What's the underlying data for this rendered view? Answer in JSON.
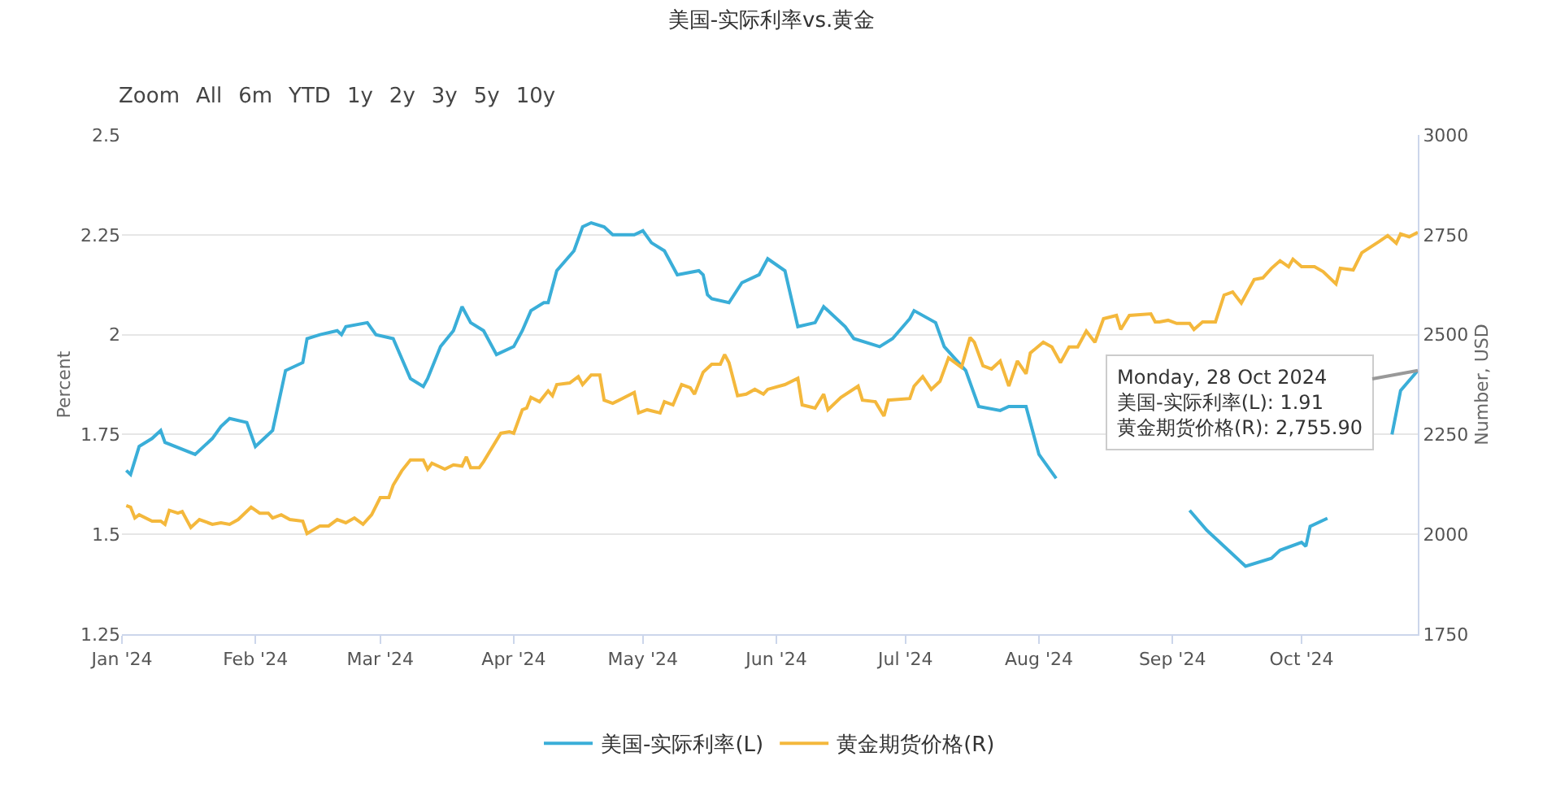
{
  "chart_data": {
    "type": "line",
    "title": "美国-实际利率vs.黄金",
    "ylabel": "Percent",
    "y2label": "Number, USD",
    "annotations": [
      "Zoom",
      "All",
      "6m",
      "YTD",
      "1y",
      "2y",
      "3y",
      "5y",
      "10y",
      {
        "text": "Monday, 28 Oct 2024\n美国-实际利率(L): 1.91\n黄金期货价格(R): 2,755.90",
        "x": "2024-10-28",
        "y": 1.91
      }
    ],
    "xlim": [
      "2024-01-01",
      "2024-10-28"
    ],
    "xticks": [
      {
        "value": "2024-01-01",
        "label": "Jan '24"
      },
      {
        "value": "2024-02-01",
        "label": "Feb '24"
      },
      {
        "value": "2024-03-01",
        "label": "Mar '24"
      },
      {
        "value": "2024-04-01",
        "label": "Apr '24"
      },
      {
        "value": "2024-05-01",
        "label": "May '24"
      },
      {
        "value": "2024-06-01",
        "label": "Jun '24"
      },
      {
        "value": "2024-07-01",
        "label": "Jul '24"
      },
      {
        "value": "2024-08-01",
        "label": "Aug '24"
      },
      {
        "value": "2024-09-01",
        "label": "Sep '24"
      },
      {
        "value": "2024-10-01",
        "label": "Oct '24"
      }
    ],
    "ylim": [
      1.25,
      2.5
    ],
    "yticks": [
      1.25,
      1.5,
      1.75,
      2,
      2.25,
      2.5
    ],
    "y2lim": [
      1750,
      3000
    ],
    "y2ticks": [
      1750,
      2000,
      2250,
      2500,
      2750,
      3000
    ],
    "grid": "y",
    "legend": "bottom",
    "series": [
      {
        "name": "美国-实际利率(L)",
        "color": "#3aaed8",
        "x": [
          "2024-01-02",
          "2024-01-03",
          "2024-01-05",
          "2024-01-08",
          "2024-01-10",
          "2024-01-11",
          "2024-01-18",
          "2024-01-22",
          "2024-01-24",
          "2024-01-26",
          "2024-01-30",
          "2024-02-01",
          "2024-02-02",
          "2024-02-05",
          "2024-02-08",
          "2024-02-12",
          "2024-02-13",
          "2024-02-16",
          "2024-02-20",
          "2024-02-21",
          "2024-02-22",
          "2024-02-27",
          "2024-02-29",
          "2024-03-04",
          "2024-03-08",
          "2024-03-11",
          "2024-03-12",
          "2024-03-15",
          "2024-03-18",
          "2024-03-20",
          "2024-03-22",
          "2024-03-25",
          "2024-03-28",
          "2024-04-01",
          "2024-04-03",
          "2024-04-05",
          "2024-04-08",
          "2024-04-09",
          "2024-04-11",
          "2024-04-15",
          "2024-04-17",
          "2024-04-19",
          "2024-04-22",
          "2024-04-24",
          "2024-04-29",
          "2024-05-01",
          "2024-05-03",
          "2024-05-06",
          "2024-05-09",
          "2024-05-14",
          "2024-05-15",
          "2024-05-16",
          "2024-05-17",
          "2024-05-21",
          "2024-05-24",
          "2024-05-28",
          "2024-05-30",
          "2024-06-03",
          "2024-06-06",
          "2024-06-10",
          "2024-06-12",
          "2024-06-14",
          "2024-06-17",
          "2024-06-19",
          "2024-06-25",
          "2024-06-28",
          "2024-07-02",
          "2024-07-03",
          "2024-07-08",
          "2024-07-10",
          "2024-07-15",
          "2024-07-18",
          "2024-07-23",
          "2024-07-25",
          "2024-07-29",
          "2024-08-01",
          "2024-08-05",
          "2024-08-15",
          "2024-09-05",
          "2024-09-09",
          "2024-09-18",
          "2024-09-24",
          "2024-09-26",
          "2024-10-01",
          "2024-10-02",
          "2024-10-03",
          "2024-10-07",
          "2024-10-14",
          "2024-10-22",
          "2024-10-24",
          "2024-10-28"
        ],
        "values": [
          1.66,
          1.65,
          1.72,
          1.74,
          1.76,
          1.73,
          1.7,
          1.74,
          1.77,
          1.79,
          1.78,
          1.72,
          1.73,
          1.76,
          1.91,
          1.93,
          1.99,
          2.0,
          2.01,
          2.0,
          2.02,
          2.03,
          2.0,
          1.99,
          1.89,
          1.87,
          1.89,
          1.97,
          2.01,
          2.07,
          2.03,
          2.01,
          1.95,
          1.97,
          2.01,
          2.06,
          2.08,
          2.08,
          2.16,
          2.21,
          2.27,
          2.28,
          2.27,
          2.25,
          2.25,
          2.26,
          2.23,
          2.21,
          2.15,
          2.16,
          2.15,
          2.1,
          2.09,
          2.08,
          2.13,
          2.15,
          2.19,
          2.16,
          2.02,
          2.03,
          2.07,
          2.05,
          2.02,
          1.99,
          1.97,
          1.99,
          2.04,
          2.06,
          2.03,
          1.97,
          1.91,
          1.82,
          1.81,
          1.82,
          1.82,
          1.7,
          1.64,
          null,
          1.56,
          1.51,
          1.42,
          1.44,
          1.46,
          1.48,
          1.47,
          1.52,
          1.54,
          null,
          1.75,
          1.86,
          1.91
        ]
      },
      {
        "name": "黄金期货价格(R)",
        "color": "#f4b83c",
        "axis": "y2",
        "x": [
          "2024-01-02",
          "2024-01-03",
          "2024-01-04",
          "2024-01-05",
          "2024-01-08",
          "2024-01-10",
          "2024-01-11",
          "2024-01-12",
          "2024-01-14",
          "2024-01-15",
          "2024-01-17",
          "2024-01-19",
          "2024-01-22",
          "2024-01-24",
          "2024-01-26",
          "2024-01-28",
          "2024-01-31",
          "2024-02-02",
          "2024-02-04",
          "2024-02-05",
          "2024-02-07",
          "2024-02-09",
          "2024-02-12",
          "2024-02-13",
          "2024-02-16",
          "2024-02-18",
          "2024-02-20",
          "2024-02-22",
          "2024-02-24",
          "2024-02-26",
          "2024-02-28",
          "2024-03-01",
          "2024-03-03",
          "2024-03-04",
          "2024-03-06",
          "2024-03-08",
          "2024-03-11",
          "2024-03-12",
          "2024-03-13",
          "2024-03-16",
          "2024-03-18",
          "2024-03-20",
          "2024-03-21",
          "2024-03-22",
          "2024-03-24",
          "2024-03-25",
          "2024-03-29",
          "2024-03-31",
          "2024-04-01",
          "2024-04-03",
          "2024-04-04",
          "2024-04-05",
          "2024-04-07",
          "2024-04-09",
          "2024-04-10",
          "2024-04-11",
          "2024-04-14",
          "2024-04-16",
          "2024-04-17",
          "2024-04-19",
          "2024-04-21",
          "2024-04-22",
          "2024-04-24",
          "2024-04-29",
          "2024-04-30",
          "2024-05-02",
          "2024-05-05",
          "2024-05-06",
          "2024-05-08",
          "2024-05-10",
          "2024-05-12",
          "2024-05-13",
          "2024-05-15",
          "2024-05-17",
          "2024-05-19",
          "2024-05-20",
          "2024-05-21",
          "2024-05-23",
          "2024-05-25",
          "2024-05-27",
          "2024-05-29",
          "2024-05-30",
          "2024-06-03",
          "2024-06-06",
          "2024-06-07",
          "2024-06-10",
          "2024-06-12",
          "2024-06-13",
          "2024-06-16",
          "2024-06-20",
          "2024-06-21",
          "2024-06-24",
          "2024-06-26",
          "2024-06-27",
          "2024-07-02",
          "2024-07-03",
          "2024-07-05",
          "2024-07-07",
          "2024-07-09",
          "2024-07-11",
          "2024-07-14",
          "2024-07-16",
          "2024-07-17",
          "2024-07-19",
          "2024-07-21",
          "2024-07-23",
          "2024-07-25",
          "2024-07-27",
          "2024-07-29",
          "2024-07-30",
          "2024-08-02",
          "2024-08-04",
          "2024-08-06",
          "2024-08-08",
          "2024-08-10",
          "2024-08-12",
          "2024-08-14",
          "2024-08-16",
          "2024-08-19",
          "2024-08-20",
          "2024-08-22",
          "2024-08-27",
          "2024-08-28",
          "2024-08-29",
          "2024-08-31",
          "2024-09-02",
          "2024-09-05",
          "2024-09-06",
          "2024-09-08",
          "2024-09-11",
          "2024-09-13",
          "2024-09-15",
          "2024-09-17",
          "2024-09-20",
          "2024-09-22",
          "2024-09-24",
          "2024-09-26",
          "2024-09-28",
          "2024-09-29",
          "2024-10-01",
          "2024-10-04",
          "2024-10-06",
          "2024-10-09",
          "2024-10-10",
          "2024-10-13",
          "2024-10-15",
          "2024-10-19",
          "2024-10-21",
          "2024-10-23",
          "2024-10-24",
          "2024-10-26",
          "2024-10-28"
        ],
        "values": [
          2072,
          2068,
          2041,
          2049,
          2033,
          2033,
          2025,
          2060,
          2053,
          2057,
          2017,
          2037,
          2025,
          2029,
          2025,
          2037,
          2068,
          2053,
          2053,
          2041,
          2049,
          2037,
          2033,
          2002,
          2021,
          2021,
          2037,
          2029,
          2041,
          2025,
          2049,
          2092,
          2092,
          2123,
          2159,
          2186,
          2186,
          2163,
          2178,
          2163,
          2174,
          2171,
          2194,
          2167,
          2167,
          2182,
          2253,
          2257,
          2253,
          2312,
          2316,
          2343,
          2332,
          2359,
          2347,
          2375,
          2379,
          2395,
          2375,
          2399,
          2399,
          2336,
          2328,
          2355,
          2304,
          2312,
          2304,
          2332,
          2324,
          2375,
          2367,
          2351,
          2406,
          2426,
          2426,
          2450,
          2430,
          2347,
          2351,
          2363,
          2351,
          2363,
          2375,
          2391,
          2324,
          2316,
          2351,
          2312,
          2343,
          2371,
          2336,
          2332,
          2296,
          2336,
          2340,
          2371,
          2395,
          2363,
          2383,
          2442,
          2418,
          2493,
          2481,
          2422,
          2414,
          2434,
          2371,
          2434,
          2402,
          2454,
          2481,
          2469,
          2430,
          2469,
          2469,
          2509,
          2481,
          2540,
          2548,
          2513,
          2548,
          2552,
          2532,
          2532,
          2536,
          2528,
          2528,
          2513,
          2532,
          2532,
          2599,
          2607,
          2579,
          2638,
          2642,
          2666,
          2685,
          2670,
          2689,
          2670,
          2670,
          2658,
          2627,
          2666,
          2662,
          2705,
          2733,
          2748,
          2729,
          2752,
          2745,
          2756
        ]
      }
    ]
  }
}
